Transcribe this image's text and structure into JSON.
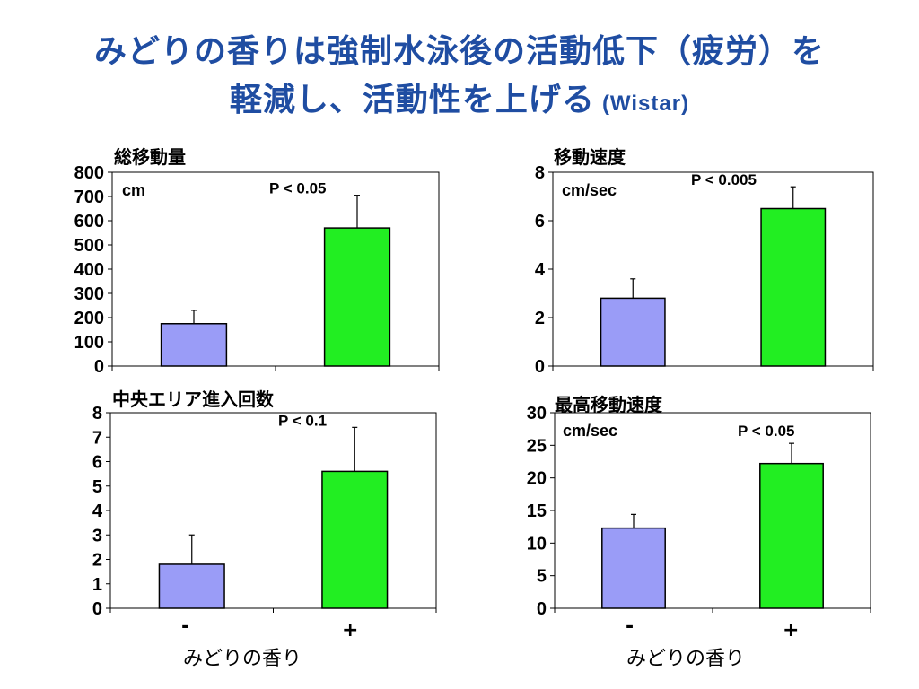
{
  "slide": {
    "title_line1": "みどりの香りは強制水泳後の活動低下（疲労）を",
    "title_line2": "軽減し、活動性を上げる",
    "title_suffix": "(Wistar)"
  },
  "colors": {
    "title": "#1f4da2",
    "minus_bar": "#9a9cf7",
    "plus_bar": "#22ee22"
  },
  "x_axis": {
    "categories": [
      "-",
      "+"
    ],
    "label": "みどりの香り"
  },
  "chart_data": [
    {
      "type": "bar",
      "title": "総移動量",
      "unit": "cm",
      "categories": [
        "-",
        "+"
      ],
      "values": [
        175,
        570
      ],
      "errors": [
        55,
        135
      ],
      "ylim": [
        0,
        800
      ],
      "yticks": [
        0,
        100,
        200,
        300,
        400,
        500,
        600,
        700,
        800
      ],
      "annotation": "P < 0.05"
    },
    {
      "type": "bar",
      "title": "移動速度",
      "unit": "cm/sec",
      "categories": [
        "-",
        "+"
      ],
      "values": [
        2.8,
        6.5
      ],
      "errors": [
        0.8,
        0.9
      ],
      "ylim": [
        0,
        8
      ],
      "yticks": [
        0,
        2,
        4,
        6,
        8
      ],
      "annotation": "P < 0.005"
    },
    {
      "type": "bar",
      "title": "中央エリア進入回数",
      "unit": "",
      "categories": [
        "-",
        "+"
      ],
      "values": [
        1.8,
        5.6
      ],
      "errors": [
        1.2,
        1.8
      ],
      "ylim": [
        0,
        8
      ],
      "yticks": [
        0,
        1,
        2,
        3,
        4,
        5,
        6,
        7,
        8
      ],
      "annotation": "P < 0.1"
    },
    {
      "type": "bar",
      "title": "最高移動速度",
      "unit": "cm/sec",
      "categories": [
        "-",
        "+"
      ],
      "values": [
        12.3,
        22.2
      ],
      "errors": [
        2.1,
        3.1
      ],
      "ylim": [
        0,
        30
      ],
      "yticks": [
        0,
        5,
        10,
        15,
        20,
        25,
        30
      ],
      "annotation": "P < 0.05"
    }
  ]
}
